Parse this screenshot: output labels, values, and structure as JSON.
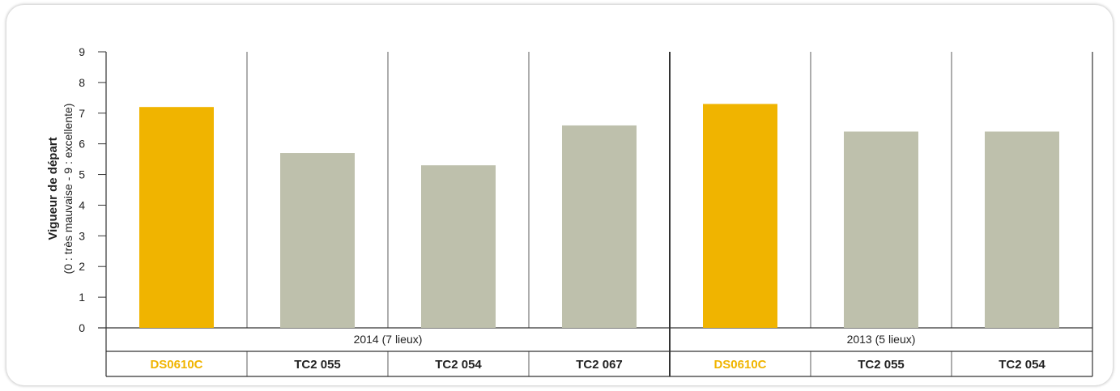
{
  "chart_data": {
    "type": "bar",
    "ylabel": "Vigueur de départ",
    "ylabel_sub": "(0 : très mauvaise - 9 : excellente)",
    "ylim": [
      0,
      9
    ],
    "yticks": [
      "0",
      "1",
      "2",
      "3",
      "4",
      "5",
      "6",
      "7",
      "8",
      "9"
    ],
    "groups": [
      {
        "label": "2014 (7 lieux)",
        "categories": [
          "DS0610C",
          "TC2 055",
          "TC2 054",
          "TC2 067"
        ],
        "values": [
          7.2,
          5.7,
          5.3,
          6.6
        ]
      },
      {
        "label": "2013 (5 lieux)",
        "categories": [
          "DS0610C",
          "TC2 055",
          "TC2 054"
        ],
        "values": [
          7.3,
          6.4,
          6.4
        ]
      }
    ],
    "highlight_category": "DS0610C",
    "colors": {
      "highlight": "#F0B400",
      "default": "#BEC0AC",
      "axis": "#333333"
    },
    "grid": false
  }
}
